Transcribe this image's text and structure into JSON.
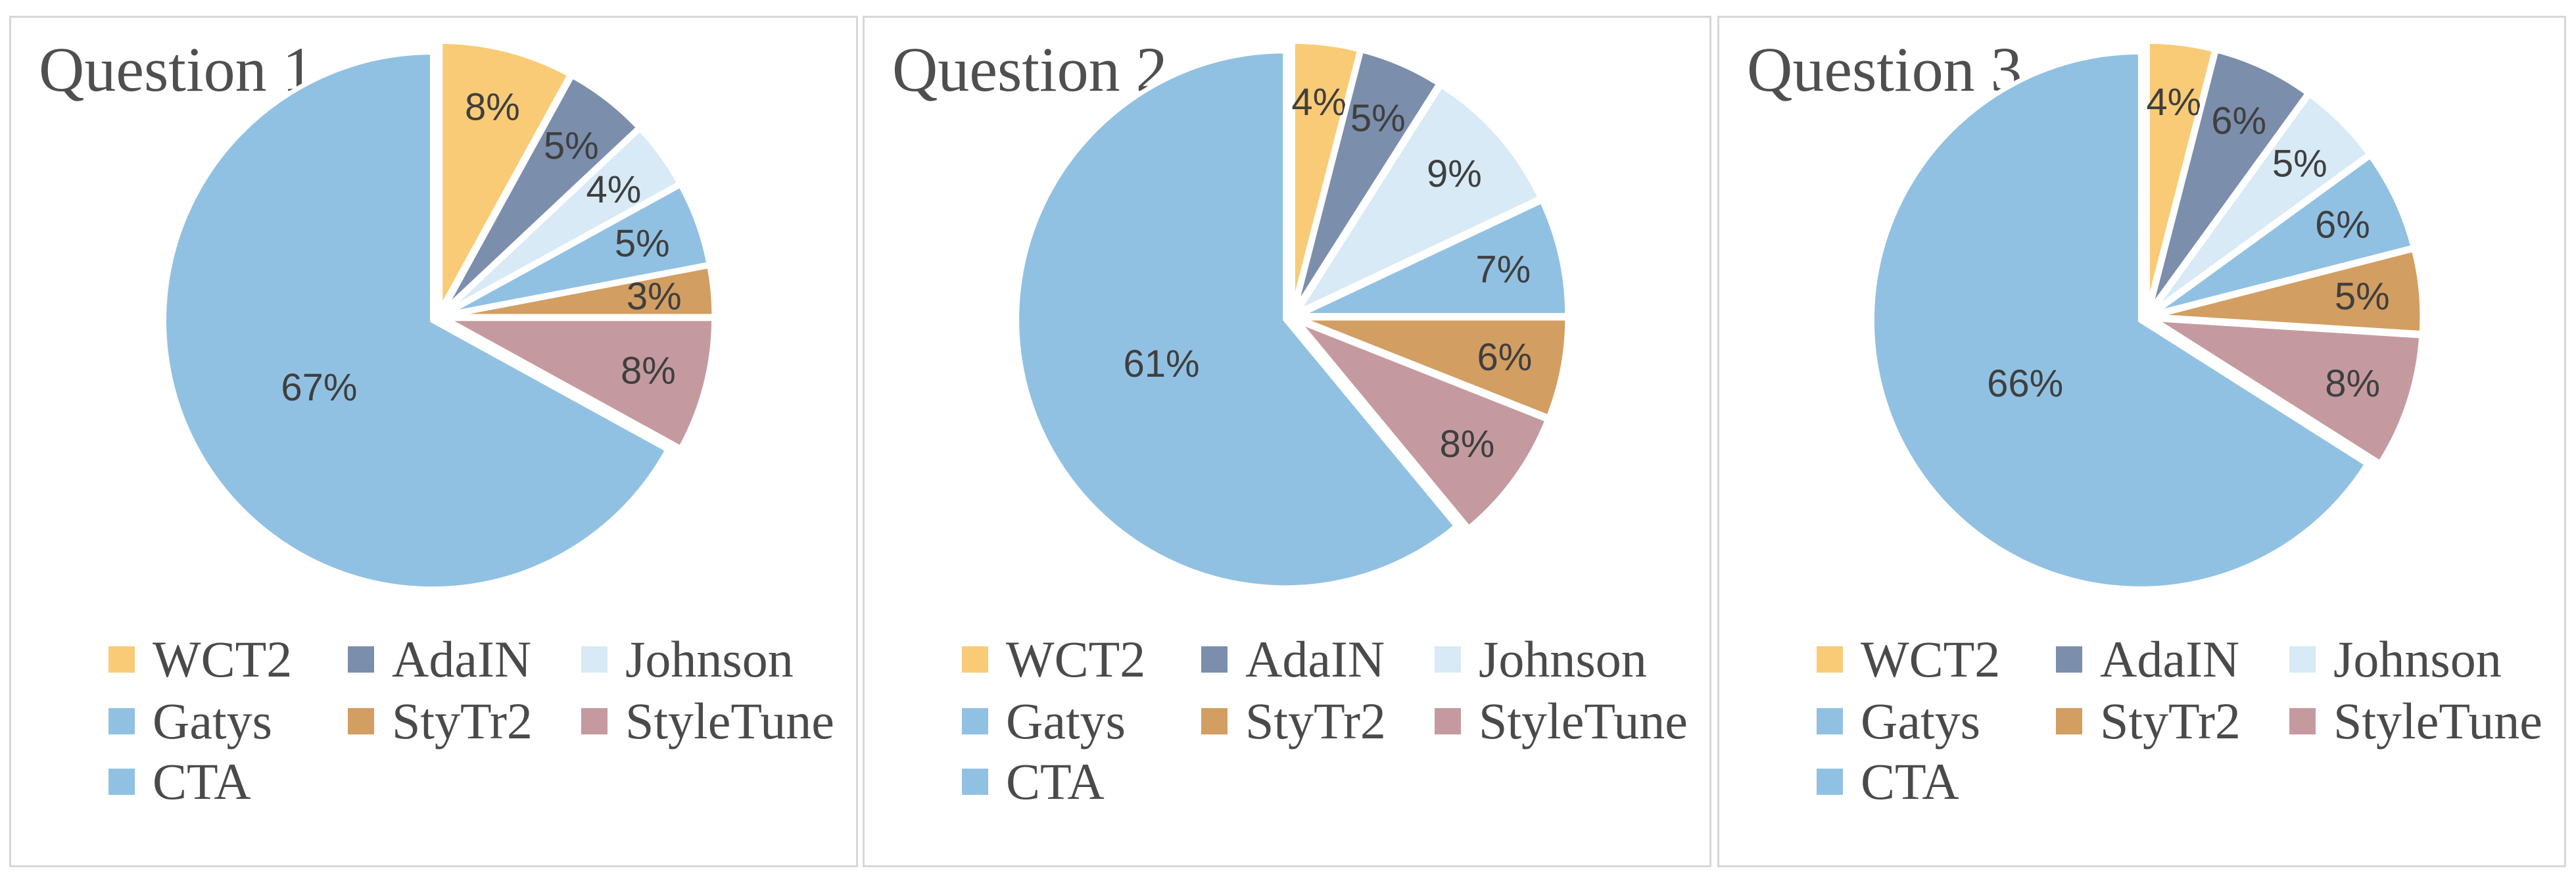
{
  "page": {
    "background": "#ffffff",
    "panel_border_color": "#D7D7D7"
  },
  "text_colors": {
    "title": "#4F4F4F",
    "pct_labels": "#3F3F3F",
    "legend": "#4A4A4A"
  },
  "series_colors": {
    "WCT2": "#F9CB76",
    "AdaIN": "#7B8EAC",
    "Johnson": "#D7EAF5",
    "Gatys": "#91C1E2",
    "StyTr2": "#D29E62",
    "StyleTune": "#C49AA0",
    "CTA": "#91C1E2"
  },
  "legend_rows": [
    [
      "WCT2",
      "AdaIN",
      "Johnson"
    ],
    [
      "Gatys",
      "StyTr2",
      "StyleTune"
    ],
    [
      "CTA"
    ]
  ],
  "panels": [
    {
      "title": "Question 1",
      "slices": [
        {
          "label": "WCT2",
          "pct": 8,
          "pct_label": "8%"
        },
        {
          "label": "AdaIN",
          "pct": 5,
          "pct_label": "5%"
        },
        {
          "label": "Johnson",
          "pct": 4,
          "pct_label": "4%"
        },
        {
          "label": "Gatys",
          "pct": 5,
          "pct_label": "5%"
        },
        {
          "label": "StyTr2",
          "pct": 3,
          "pct_label": "3%"
        },
        {
          "label": "StyleTune",
          "pct": 8,
          "pct_label": "8%"
        },
        {
          "label": "CTA",
          "pct": 67,
          "pct_label": "67%"
        }
      ]
    },
    {
      "title": "Question 2",
      "slices": [
        {
          "label": "WCT2",
          "pct": 4,
          "pct_label": "4%"
        },
        {
          "label": "AdaIN",
          "pct": 5,
          "pct_label": "5%"
        },
        {
          "label": "Johnson",
          "pct": 9,
          "pct_label": "9%"
        },
        {
          "label": "Gatys",
          "pct": 7,
          "pct_label": "7%"
        },
        {
          "label": "StyTr2",
          "pct": 6,
          "pct_label": "6%"
        },
        {
          "label": "StyleTune",
          "pct": 8,
          "pct_label": "8%"
        },
        {
          "label": "CTA",
          "pct": 61,
          "pct_label": "61%"
        }
      ]
    },
    {
      "title": "Question 3",
      "slices": [
        {
          "label": "WCT2",
          "pct": 4,
          "pct_label": "4%"
        },
        {
          "label": "AdaIN",
          "pct": 6,
          "pct_label": "6%"
        },
        {
          "label": "Johnson",
          "pct": 5,
          "pct_label": "5%"
        },
        {
          "label": "Gatys",
          "pct": 6,
          "pct_label": "6%"
        },
        {
          "label": "StyTr2",
          "pct": 5,
          "pct_label": "5%"
        },
        {
          "label": "StyleTune",
          "pct": 8,
          "pct_label": "8%"
        },
        {
          "label": "CTA",
          "pct": 66,
          "pct_label": "66%"
        }
      ]
    }
  ],
  "chart_data": [
    {
      "type": "pie",
      "title": "Question 1",
      "categories": [
        "WCT2",
        "AdaIN",
        "Johnson",
        "Gatys",
        "StyTr2",
        "StyleTune",
        "CTA"
      ],
      "values": [
        8,
        5,
        4,
        5,
        3,
        8,
        67
      ],
      "unit": "percent",
      "colors": [
        "#F9CB76",
        "#7B8EAC",
        "#D7EAF5",
        "#91C1E2",
        "#D29E62",
        "#C49AA0",
        "#91C1E2"
      ],
      "start_angle_deg": 0,
      "direction": "clockwise",
      "label_format": "percent",
      "legend_position": "bottom"
    },
    {
      "type": "pie",
      "title": "Question 2",
      "categories": [
        "WCT2",
        "AdaIN",
        "Johnson",
        "Gatys",
        "StyTr2",
        "StyleTune",
        "CTA"
      ],
      "values": [
        4,
        5,
        9,
        7,
        6,
        8,
        61
      ],
      "unit": "percent",
      "colors": [
        "#F9CB76",
        "#7B8EAC",
        "#D7EAF5",
        "#91C1E2",
        "#D29E62",
        "#C49AA0",
        "#91C1E2"
      ],
      "start_angle_deg": 0,
      "direction": "clockwise",
      "label_format": "percent",
      "legend_position": "bottom"
    },
    {
      "type": "pie",
      "title": "Question 3",
      "categories": [
        "WCT2",
        "AdaIN",
        "Johnson",
        "Gatys",
        "StyTr2",
        "StyleTune",
        "CTA"
      ],
      "values": [
        4,
        6,
        5,
        6,
        5,
        8,
        66
      ],
      "unit": "percent",
      "colors": [
        "#F9CB76",
        "#7B8EAC",
        "#D7EAF5",
        "#91C1E2",
        "#D29E62",
        "#C49AA0",
        "#91C1E2"
      ],
      "start_angle_deg": 0,
      "direction": "clockwise",
      "label_format": "percent",
      "legend_position": "bottom"
    }
  ]
}
